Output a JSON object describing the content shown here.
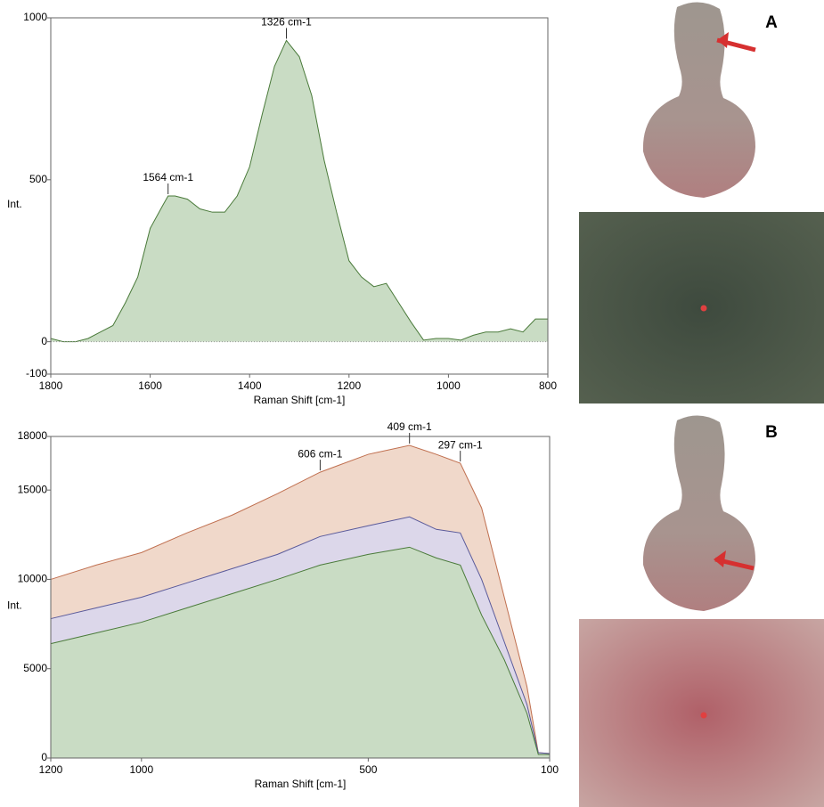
{
  "panel_labels": [
    "A",
    "B"
  ],
  "chart_data": [
    {
      "type": "area",
      "xlabel": "Raman Shift [cm-1]",
      "ylabel": "Int.",
      "x": [
        1800,
        1775,
        1750,
        1725,
        1700,
        1675,
        1650,
        1625,
        1600,
        1575,
        1564,
        1550,
        1525,
        1500,
        1475,
        1450,
        1425,
        1400,
        1375,
        1350,
        1326,
        1300,
        1275,
        1250,
        1225,
        1200,
        1175,
        1150,
        1125,
        1100,
        1075,
        1050,
        1025,
        1000,
        975,
        950,
        925,
        900,
        875,
        850,
        825,
        800
      ],
      "values": [
        10,
        0,
        0,
        10,
        30,
        50,
        120,
        200,
        350,
        420,
        450,
        450,
        440,
        410,
        400,
        400,
        450,
        540,
        700,
        850,
        930,
        880,
        760,
        560,
        400,
        250,
        200,
        170,
        180,
        120,
        60,
        5,
        10,
        10,
        5,
        20,
        30,
        30,
        40,
        30,
        70,
        70
      ],
      "color": "#4a7a3a",
      "fill": "#c9dcc4",
      "xlim": [
        1800,
        800
      ],
      "xticks": [
        1800,
        1600,
        1400,
        1200,
        1000,
        800
      ],
      "ylim": [
        -100,
        1000
      ],
      "yticks": [
        -100,
        0,
        500,
        1000
      ],
      "annotations": [
        {
          "text": "1564 cm-1",
          "x": 1564,
          "y": 450
        },
        {
          "text": "1326 cm-1",
          "x": 1326,
          "y": 930
        }
      ]
    },
    {
      "type": "area",
      "xlabel": "Raman Shift [cm-1]",
      "ylabel": "Int.",
      "x": [
        1200,
        1100,
        1000,
        900,
        800,
        700,
        606,
        500,
        409,
        350,
        297,
        250,
        200,
        150,
        125,
        100
      ],
      "series": [
        {
          "color": "#c07050",
          "fill": "#f0d8ca",
          "values": [
            10000,
            10800,
            11500,
            12600,
            13600,
            14800,
            16000,
            17000,
            17500,
            17000,
            16500,
            14000,
            9000,
            4000,
            300,
            250
          ]
        },
        {
          "color": "#5a5a9a",
          "fill": "#dcd7ea",
          "values": [
            7800,
            8400,
            9000,
            9800,
            10600,
            11400,
            12400,
            13000,
            13500,
            12800,
            12600,
            10000,
            6500,
            3000,
            300,
            250
          ]
        },
        {
          "color": "#4a7a3a",
          "fill": "#c9dcc4",
          "values": [
            6400,
            7000,
            7600,
            8400,
            9200,
            10000,
            10800,
            11400,
            11800,
            11200,
            10800,
            8000,
            5500,
            2500,
            200,
            200
          ]
        }
      ],
      "xlim": [
        1200,
        100
      ],
      "xticks": [
        1200,
        1000,
        500,
        100
      ],
      "ylim": [
        0,
        18000
      ],
      "yticks": [
        0,
        5000,
        10000,
        15000,
        18000
      ],
      "annotations": [
        {
          "text": "606 cm-1",
          "x": 606,
          "y": 16000
        },
        {
          "text": "409 cm-1",
          "x": 409,
          "y": 17500
        },
        {
          "text": "297 cm-1",
          "x": 297,
          "y": 16500
        }
      ]
    }
  ]
}
